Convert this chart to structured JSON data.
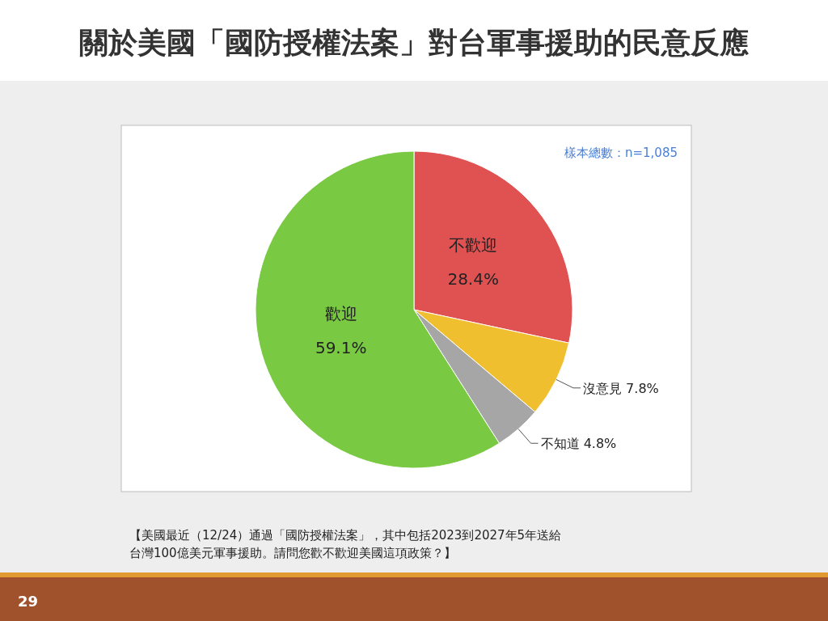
{
  "chart_data": {
    "type": "pie",
    "title": "關於美國「國防授權法案」對台軍事援助的民意反應",
    "categories": [
      "不歡迎",
      "沒意見",
      "不知道",
      "歡迎"
    ],
    "values": [
      28.4,
      7.8,
      4.8,
      59.1
    ],
    "colors": [
      "#e05252",
      "#f0bf30",
      "#a6a6a6",
      "#7ac943"
    ],
    "value_labels": [
      "28.4%",
      "7.8%",
      "4.8%",
      "59.1%"
    ],
    "annotations": [
      "樣本總數：n=1,085",
      "【美國最近（12/24）通過「國防授權法案」，其中包括2023到2027年5年送給台灣100億美元軍事援助。請問您歡不歡迎美國這項政策？】",
      "29"
    ]
  }
}
